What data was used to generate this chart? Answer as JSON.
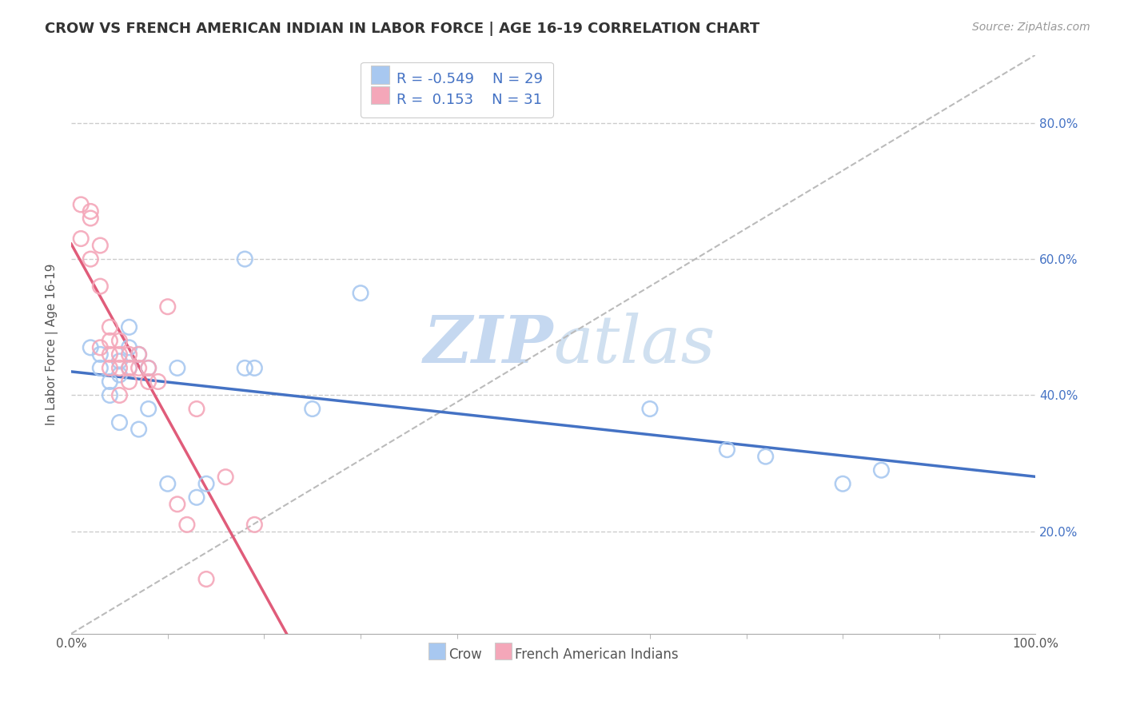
{
  "title": "CROW VS FRENCH AMERICAN INDIAN IN LABOR FORCE | AGE 16-19 CORRELATION CHART",
  "source": "Source: ZipAtlas.com",
  "ylabel": "In Labor Force | Age 16-19",
  "xlabel": "",
  "xlim": [
    0.0,
    1.0
  ],
  "ylim": [
    0.05,
    0.9
  ],
  "xtick_labels": [
    "0.0%",
    "",
    "",
    "",
    "",
    "",
    "",
    "",
    "",
    "",
    "100.0%"
  ],
  "xtick_vals": [
    0.0,
    0.1,
    0.2,
    0.3,
    0.4,
    0.5,
    0.6,
    0.7,
    0.8,
    0.9,
    1.0
  ],
  "ytick_labels": [
    "20.0%",
    "40.0%",
    "60.0%",
    "80.0%"
  ],
  "ytick_vals": [
    0.2,
    0.4,
    0.6,
    0.8
  ],
  "crow_R": -0.549,
  "crow_N": 29,
  "french_R": 0.153,
  "french_N": 31,
  "crow_color": "#A8C8F0",
  "french_color": "#F4A7B9",
  "crow_line_color": "#4472C4",
  "french_line_color": "#E05C7A",
  "trendline_dashed_color": "#BBBBBB",
  "background_color": "#FFFFFF",
  "grid_color": "#CCCCCC",
  "watermark_zip": "ZIP",
  "watermark_atlas": "atlas",
  "crow_points_x": [
    0.02,
    0.03,
    0.03,
    0.04,
    0.04,
    0.05,
    0.05,
    0.05,
    0.06,
    0.06,
    0.06,
    0.07,
    0.07,
    0.08,
    0.08,
    0.1,
    0.11,
    0.13,
    0.14,
    0.18,
    0.18,
    0.19,
    0.25,
    0.3,
    0.6,
    0.68,
    0.72,
    0.8,
    0.84
  ],
  "crow_points_y": [
    0.47,
    0.46,
    0.44,
    0.42,
    0.4,
    0.45,
    0.43,
    0.36,
    0.5,
    0.47,
    0.44,
    0.46,
    0.35,
    0.44,
    0.38,
    0.27,
    0.44,
    0.25,
    0.27,
    0.6,
    0.44,
    0.44,
    0.38,
    0.55,
    0.38,
    0.32,
    0.31,
    0.27,
    0.29
  ],
  "french_points_x": [
    0.01,
    0.01,
    0.02,
    0.02,
    0.02,
    0.03,
    0.03,
    0.03,
    0.04,
    0.04,
    0.04,
    0.04,
    0.05,
    0.05,
    0.05,
    0.05,
    0.06,
    0.06,
    0.06,
    0.07,
    0.07,
    0.08,
    0.08,
    0.09,
    0.1,
    0.11,
    0.12,
    0.13,
    0.14,
    0.16,
    0.19
  ],
  "french_points_y": [
    0.63,
    0.68,
    0.67,
    0.66,
    0.6,
    0.62,
    0.56,
    0.47,
    0.5,
    0.48,
    0.46,
    0.44,
    0.48,
    0.46,
    0.44,
    0.4,
    0.46,
    0.44,
    0.42,
    0.46,
    0.44,
    0.44,
    0.42,
    0.42,
    0.53,
    0.24,
    0.21,
    0.38,
    0.13,
    0.28,
    0.21
  ]
}
